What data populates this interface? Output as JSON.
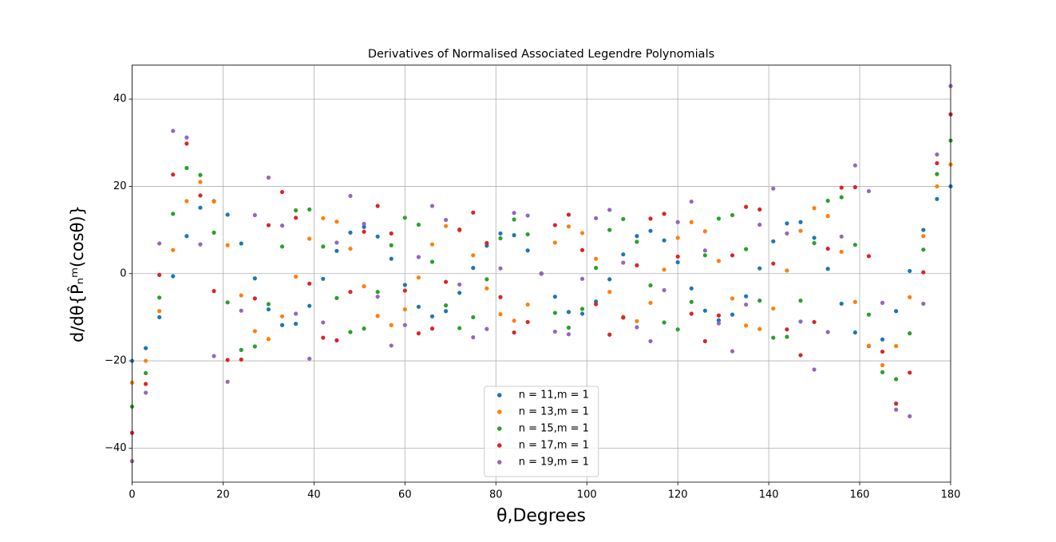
{
  "chart_data": {
    "type": "scatter",
    "title": "Derivatives of Normalised Associated Legendre Polynomials",
    "x_label": "θ,Degrees",
    "y_label": "d/dθ{P̂ₙᵐ(cosθ)}",
    "xlim": [
      0,
      180
    ],
    "ylim": [
      -47.8,
      47.8
    ],
    "xticks": [
      0,
      20,
      40,
      60,
      80,
      100,
      120,
      140,
      160,
      180
    ],
    "yticks": [
      {
        "value": -40,
        "label": "−40"
      },
      {
        "value": -20,
        "label": "−20"
      },
      0,
      20,
      40
    ],
    "grid": true,
    "legend": "lower center",
    "x": [
      0,
      3,
      6,
      9,
      12,
      15,
      18,
      21,
      24,
      27,
      30,
      33,
      36,
      39,
      42,
      45,
      48,
      51,
      54,
      57,
      60,
      63,
      66,
      69,
      72,
      75,
      78,
      81,
      84,
      87,
      90,
      93,
      96,
      99,
      102,
      105,
      108,
      111,
      114,
      117,
      120,
      123,
      126,
      129,
      132,
      135,
      138,
      141,
      144,
      147,
      150,
      153,
      156,
      159,
      162,
      165,
      168,
      171,
      174,
      177,
      180
    ],
    "series": [
      {
        "name": "n = 11,m = 1",
        "color": "#1f77b4",
        "values": [
          -20.0,
          -17.1,
          -10.0,
          -0.6,
          8.6,
          15.1,
          16.6,
          13.5,
          6.9,
          -1.1,
          -8.2,
          -11.8,
          -11.5,
          -7.4,
          -1.2,
          5.2,
          9.4,
          10.7,
          8.5,
          3.4,
          -2.6,
          -7.6,
          -9.8,
          -8.6,
          -4.4,
          1.3,
          6.4,
          9.2,
          8.8,
          5.3,
          0,
          -5.3,
          -8.8,
          -9.2,
          -6.4,
          -1.3,
          4.4,
          8.6,
          9.8,
          7.6,
          2.6,
          -3.4,
          -8.5,
          -10.7,
          -9.4,
          -5.2,
          1.2,
          7.4,
          11.5,
          11.8,
          8.2,
          1.1,
          -6.9,
          -13.5,
          -16.6,
          -15.1,
          -8.6,
          0.6,
          10.0,
          17.1,
          20.0
        ]
      },
      {
        "name": "n = 13,m = 1",
        "color": "#ff7f0e",
        "values": [
          -25.0,
          -20.0,
          -8.6,
          5.4,
          16.6,
          21.0,
          16.5,
          6.5,
          -5.0,
          -13.2,
          -15.0,
          -9.8,
          -0.7,
          8.0,
          12.7,
          11.9,
          5.7,
          -2.9,
          -9.7,
          -11.8,
          -8.2,
          -0.9,
          6.7,
          10.9,
          9.9,
          4.2,
          -3.4,
          -9.3,
          -10.8,
          -7.1,
          0,
          7.1,
          10.8,
          9.3,
          3.4,
          -4.2,
          -9.9,
          -10.9,
          -6.7,
          0.9,
          8.2,
          11.8,
          9.7,
          2.9,
          -5.7,
          -11.9,
          -12.7,
          -8.0,
          0.7,
          9.8,
          15.0,
          13.2,
          5.0,
          -6.5,
          -16.5,
          -21.0,
          -16.6,
          -5.4,
          8.6,
          20.0,
          25.0
        ]
      },
      {
        "name": "n = 15,m = 1",
        "color": "#2ca02c",
        "values": [
          -30.5,
          -22.8,
          -5.5,
          13.7,
          24.2,
          22.6,
          9.4,
          -6.6,
          -17.5,
          -16.7,
          -7.0,
          6.2,
          14.5,
          14.7,
          6.2,
          -5.6,
          -13.4,
          -12.6,
          -4.2,
          6.5,
          12.8,
          11.2,
          2.7,
          -7.3,
          -12.5,
          -10.0,
          -1.3,
          8.1,
          12.4,
          9.0,
          0,
          -9.0,
          -12.4,
          -8.1,
          1.3,
          10.0,
          12.5,
          7.3,
          -2.7,
          -11.2,
          -12.8,
          -6.5,
          4.2,
          12.6,
          13.4,
          5.6,
          -6.2,
          -14.7,
          -14.5,
          -6.2,
          7.0,
          16.7,
          17.5,
          6.6,
          -9.4,
          -22.6,
          -24.2,
          -13.7,
          5.5,
          22.8,
          30.5
        ]
      },
      {
        "name": "n = 17,m = 1",
        "color": "#d62728",
        "values": [
          -36.5,
          -25.3,
          -0.3,
          22.7,
          29.8,
          17.9,
          -4.0,
          -19.8,
          -19.7,
          -5.7,
          11.1,
          18.7,
          12.8,
          -2.3,
          -14.7,
          -15.3,
          -4.2,
          9.6,
          15.5,
          9.2,
          -3.9,
          -13.7,
          -12.6,
          -1.9,
          10.1,
          14.0,
          7.0,
          -5.4,
          -13.5,
          -11.1,
          0,
          11.1,
          13.5,
          5.4,
          -7.0,
          -14.0,
          -10.1,
          1.9,
          12.6,
          13.7,
          3.9,
          -9.2,
          -15.5,
          -9.6,
          4.2,
          15.3,
          14.7,
          2.3,
          -12.8,
          -18.7,
          -11.1,
          5.7,
          19.7,
          19.8,
          4.0,
          -17.9,
          -29.8,
          -22.7,
          0.3,
          25.3,
          36.5
        ]
      },
      {
        "name": "n = 19,m = 1",
        "color": "#9467bd",
        "values": [
          -43.0,
          -27.3,
          6.9,
          32.7,
          31.2,
          6.7,
          -18.9,
          -24.8,
          -8.5,
          13.4,
          22.0,
          11.0,
          -9.2,
          -19.5,
          -11.2,
          7.1,
          17.8,
          11.4,
          -5.3,
          -16.5,
          -11.8,
          3.8,
          15.5,
          12.3,
          -2.5,
          -14.6,
          -12.7,
          1.2,
          13.9,
          13.3,
          0,
          -13.3,
          -13.9,
          -1.2,
          12.7,
          14.6,
          2.5,
          -12.3,
          -15.5,
          -3.8,
          11.8,
          16.5,
          5.3,
          -11.4,
          -17.8,
          -7.1,
          11.2,
          19.5,
          9.2,
          -11.0,
          -22.0,
          -13.4,
          8.5,
          24.8,
          18.9,
          -6.7,
          -31.2,
          -32.7,
          -6.9,
          27.3,
          43.0
        ]
      }
    ]
  }
}
